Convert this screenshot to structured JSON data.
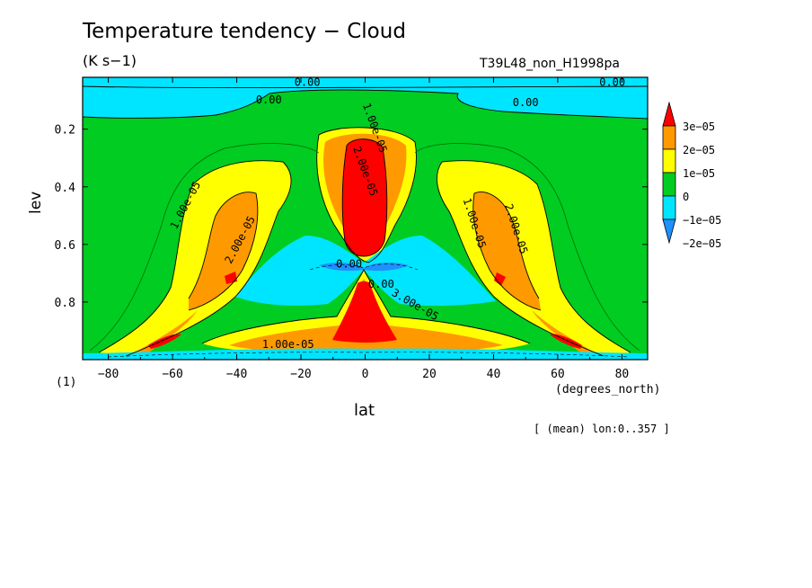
{
  "chart_data": {
    "type": "heatmap",
    "title": "Temperature tendency − Cloud",
    "units": "(K s−1)",
    "run_id": "T39L48_non_H1998pa",
    "xlabel": "lat",
    "ylabel": "lev",
    "x_unit": "(degrees_north)",
    "y_unit": "(1)",
    "footnote": "[ (mean) lon:0..357 ]",
    "xlim": [
      -88,
      88
    ],
    "ylim": [
      1.0,
      0.02
    ],
    "x_ticks": [
      -80,
      -60,
      -40,
      -20,
      0,
      20,
      40,
      60,
      80
    ],
    "x_tick_labels": [
      "−80",
      "−60",
      "−40",
      "−20",
      "0",
      "20",
      "40",
      "60",
      "80"
    ],
    "y_ticks": [
      0.2,
      0.4,
      0.6,
      0.8
    ],
    "y_tick_labels": [
      "0.2",
      "0.4",
      "0.6",
      "0.8"
    ],
    "colorbar": {
      "levels": [
        -2e-05,
        -1e-05,
        0,
        1e-05,
        2e-05,
        3e-05
      ],
      "labels": [
        "−2e−05",
        "−1e−05",
        "0",
        "1e−05",
        "2e−05",
        "3e−05"
      ],
      "colors": [
        "#1e90ff",
        "#00e5ff",
        "#00cc22",
        "#ffff00",
        "#ff9900",
        "#ff0000"
      ],
      "extend": "both"
    },
    "contour_labels": [
      "0.00",
      "0.00",
      "0.00",
      "0.00",
      "1.00e-05",
      "2.00e-05",
      "1.00e-05",
      "2.00e-05",
      "1.00e-05",
      "2.00e-05",
      "3.00e-05",
      "1.00e-05",
      "0.00",
      "0.00"
    ],
    "field_features": [
      {
        "lat": 0,
        "lev_range": [
          0.22,
          0.63
        ],
        "sign": "positive",
        "max_value": 3e-05
      },
      {
        "lat": 0,
        "lev_range": [
          0.74,
          0.98
        ],
        "sign": "positive",
        "max_value": 3e-05
      },
      {
        "lat": -42,
        "lev": 0.7,
        "sign": "positive",
        "max_value": 3e-05
      },
      {
        "lat": 43,
        "lev": 0.7,
        "sign": "positive",
        "max_value": 3e-05
      },
      {
        "lat": -63,
        "lev": 0.95,
        "sign": "positive",
        "max_value": 3e-05
      },
      {
        "lat": 63,
        "lev": 0.95,
        "sign": "positive",
        "max_value": 3e-05
      },
      {
        "lat": 0,
        "lev": 0.67,
        "sign": "negative",
        "min_value": -2e-05
      },
      {
        "lat": -60,
        "lev": 0.05,
        "sign": "negative",
        "min_value": -1e-05
      },
      {
        "lat": 55,
        "lev": 0.05,
        "sign": "negative",
        "min_value": -1e-05
      }
    ]
  }
}
